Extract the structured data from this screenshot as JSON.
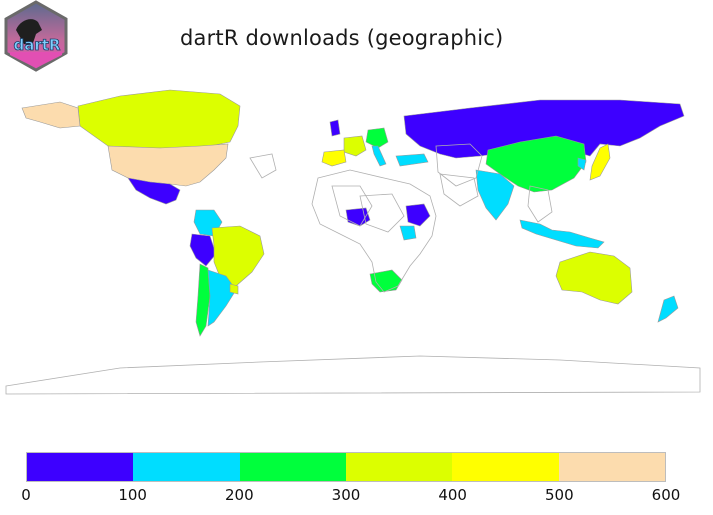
{
  "logo": {
    "text": "dartR"
  },
  "title": "dartR downloads (geographic)",
  "legend": {
    "colors": [
      "#3d00ff",
      "#00ddff",
      "#00ff3c",
      "#dcff00",
      "#ffff00",
      "#fcdcae"
    ],
    "ticks": [
      "0",
      "100",
      "200",
      "300",
      "400",
      "500",
      "600"
    ]
  },
  "map": {
    "countries": [
      {
        "name": "Russia",
        "color": "#3d00ff"
      },
      {
        "name": "Canada",
        "color": "#dcff00"
      },
      {
        "name": "Alaska",
        "color": "#fcdcae"
      },
      {
        "name": "USA",
        "color": "#fcdcae"
      },
      {
        "name": "Mexico",
        "color": "#3d00ff"
      },
      {
        "name": "Colombia",
        "color": "#00ddff"
      },
      {
        "name": "Peru",
        "color": "#3d00ff"
      },
      {
        "name": "Brazil",
        "color": "#dcff00"
      },
      {
        "name": "Chile",
        "color": "#00ff3c"
      },
      {
        "name": "Argentina",
        "color": "#00ddff"
      },
      {
        "name": "Uruguay",
        "color": "#dcff00"
      },
      {
        "name": "China",
        "color": "#00ff3c"
      },
      {
        "name": "India",
        "color": "#00ddff"
      },
      {
        "name": "Japan",
        "color": "#ffff00"
      },
      {
        "name": "South Korea",
        "color": "#00ddff"
      },
      {
        "name": "Australia",
        "color": "#dcff00"
      },
      {
        "name": "New Zealand",
        "color": "#00ddff"
      },
      {
        "name": "Indonesia",
        "color": "#00ddff"
      },
      {
        "name": "South Africa",
        "color": "#00ff3c"
      },
      {
        "name": "Nigeria",
        "color": "#3d00ff"
      },
      {
        "name": "Ethiopia",
        "color": "#3d00ff"
      },
      {
        "name": "Kenya",
        "color": "#00ddff"
      },
      {
        "name": "Germany",
        "color": "#00ff3c"
      },
      {
        "name": "France",
        "color": "#dcff00"
      },
      {
        "name": "Spain",
        "color": "#ffff00"
      },
      {
        "name": "United Kingdom",
        "color": "#3d00ff"
      },
      {
        "name": "Turkey",
        "color": "#00ddff"
      },
      {
        "name": "Italy",
        "color": "#00ddff"
      }
    ]
  }
}
